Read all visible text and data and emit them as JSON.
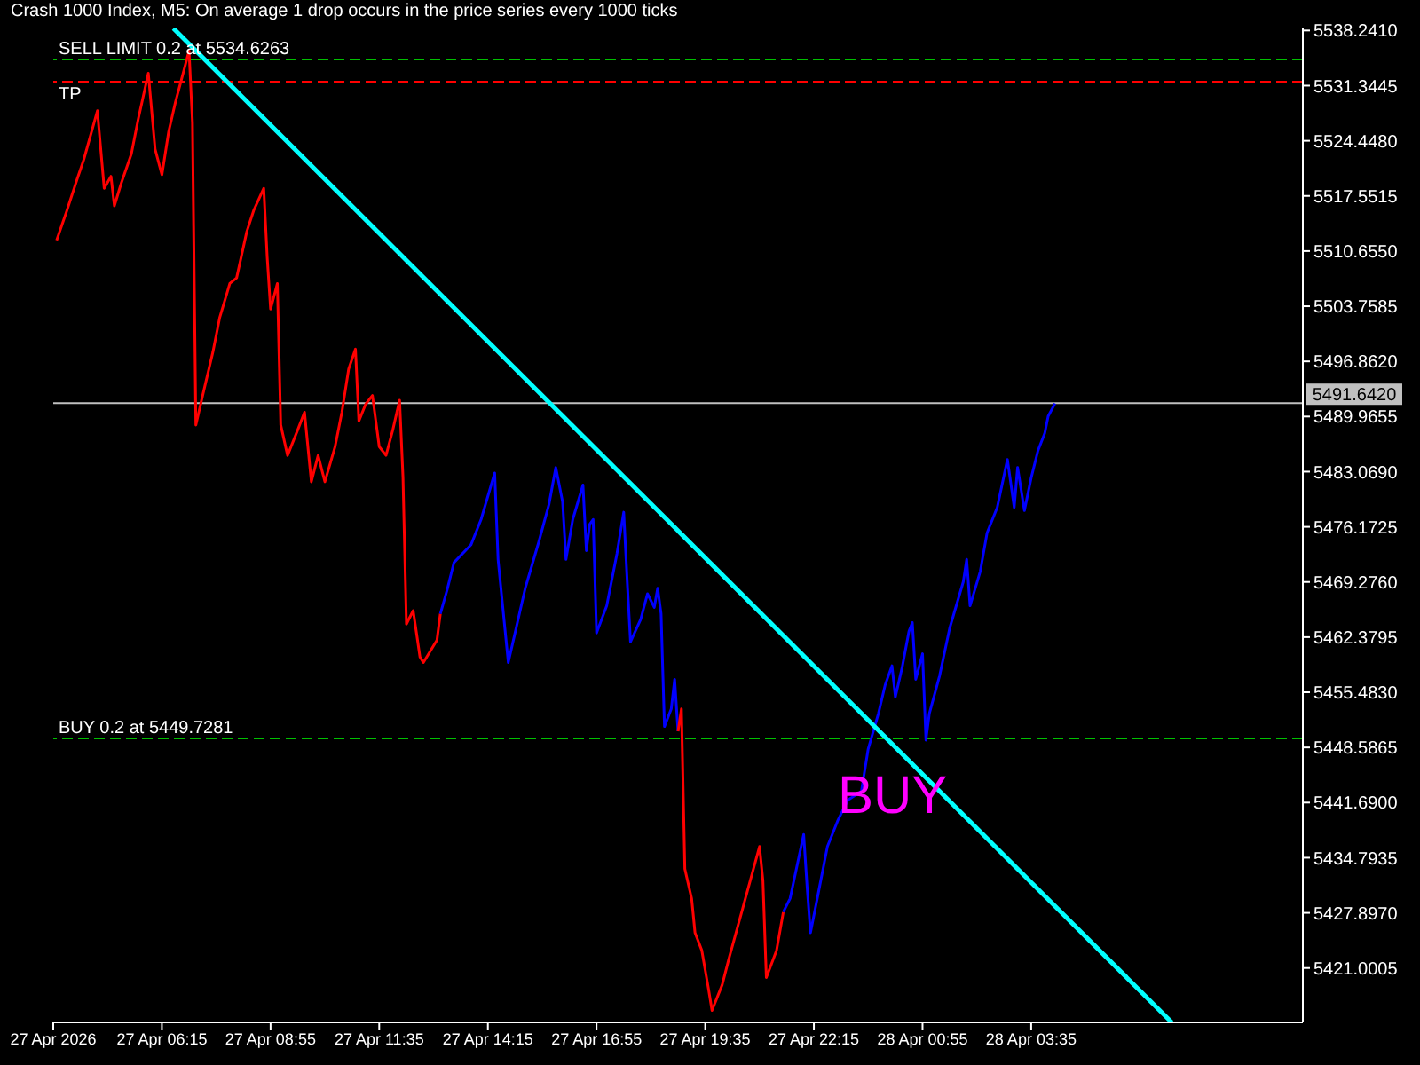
{
  "chart_data": {
    "type": "line",
    "title": "Crash 1000 Index, M5:  On average 1 drop occurs in the price series every 1000 ticks",
    "xlim": [
      "2026-04-27T03:35",
      "2026-04-28T10:15"
    ],
    "xticks": [
      {
        "value": "2026-04-27T03:35",
        "label": "27 Apr 2026"
      },
      {
        "value": "2026-04-27T06:15",
        "label": "27 Apr 06:15"
      },
      {
        "value": "2026-04-27T08:55",
        "label": "27 Apr 08:55"
      },
      {
        "value": "2026-04-27T11:35",
        "label": "27 Apr 11:35"
      },
      {
        "value": "2026-04-27T14:15",
        "label": "27 Apr 14:15"
      },
      {
        "value": "2026-04-27T16:55",
        "label": "27 Apr 16:55"
      },
      {
        "value": "2026-04-27T19:35",
        "label": "27 Apr 19:35"
      },
      {
        "value": "2026-04-27T22:15",
        "label": "27 Apr 22:15"
      },
      {
        "value": "2026-04-28T00:55",
        "label": "28 Apr 00:55"
      },
      {
        "value": "2026-04-28T03:35",
        "label": "28 Apr 03:35"
      }
    ],
    "ylim": [
      5414.2,
      5538.5
    ],
    "yticks": [
      {
        "value": 5421.0005,
        "label": "5421.0005"
      },
      {
        "value": 5427.897,
        "label": "5427.8970"
      },
      {
        "value": 5434.7935,
        "label": "5434.7935"
      },
      {
        "value": 5441.69,
        "label": "5441.6900"
      },
      {
        "value": 5448.5865,
        "label": "5448.5865"
      },
      {
        "value": 5455.483,
        "label": "5455.4830"
      },
      {
        "value": 5462.3795,
        "label": "5462.3795"
      },
      {
        "value": 5469.276,
        "label": "5469.2760"
      },
      {
        "value": 5476.1725,
        "label": "5476.1725"
      },
      {
        "value": 5483.069,
        "label": "5483.0690"
      },
      {
        "value": 5489.9655,
        "label": "5489.9655"
      },
      {
        "value": 5496.862,
        "label": "5496.8620"
      },
      {
        "value": 5503.7585,
        "label": "5503.7585"
      },
      {
        "value": 5510.655,
        "label": "5510.6550"
      },
      {
        "value": 5517.5515,
        "label": "5517.5515"
      },
      {
        "value": 5524.448,
        "label": "5524.4480"
      },
      {
        "value": 5531.3445,
        "label": "5531.3445"
      },
      {
        "value": 5538.241,
        "label": "5538.2410"
      }
    ],
    "series": [
      {
        "color": "#ff0000",
        "x": [
          "2026-04-27T03:40",
          "2026-04-27T03:55",
          "2026-04-27T04:10",
          "2026-04-27T04:20",
          "2026-04-27T04:40",
          "2026-04-27T04:50",
          "2026-04-27T05:00",
          "2026-04-27T05:05",
          "2026-04-27T05:15",
          "2026-04-27T05:30",
          "2026-04-27T05:40",
          "2026-04-27T05:55",
          "2026-04-27T06:05",
          "2026-04-27T06:15",
          "2026-04-27T06:25",
          "2026-04-27T06:35",
          "2026-04-27T06:45",
          "2026-04-27T06:55",
          "2026-04-27T07:00",
          "2026-04-27T07:05",
          "2026-04-27T07:15",
          "2026-04-27T07:30",
          "2026-04-27T07:40",
          "2026-04-27T07:55",
          "2026-04-27T08:05",
          "2026-04-27T08:20",
          "2026-04-27T08:30",
          "2026-04-27T08:45",
          "2026-04-27T08:50",
          "2026-04-27T08:55",
          "2026-04-27T09:05",
          "2026-04-27T09:10",
          "2026-04-27T09:20",
          "2026-04-27T09:35",
          "2026-04-27T09:45",
          "2026-04-27T09:55",
          "2026-04-27T10:05",
          "2026-04-27T10:15",
          "2026-04-27T10:30",
          "2026-04-27T10:40",
          "2026-04-27T10:50",
          "2026-04-27T11:00",
          "2026-04-27T11:05",
          "2026-04-27T11:15",
          "2026-04-27T11:25",
          "2026-04-27T11:35",
          "2026-04-27T11:45",
          "2026-04-27T11:55",
          "2026-04-27T12:05",
          "2026-04-27T12:10",
          "2026-04-27T12:15",
          "2026-04-27T12:25",
          "2026-04-27T12:35",
          "2026-04-27T12:40",
          "2026-04-27T13:00",
          "2026-04-27T13:05"
        ],
        "values": [
          5512.0,
          5515.7,
          5519.6,
          5522.1,
          5528.2,
          5518.5,
          5520.0,
          5516.3,
          5519.1,
          5522.8,
          5527.1,
          5532.9,
          5523.4,
          5520.2,
          5525.6,
          5529.3,
          5532.5,
          5535.7,
          5526.7,
          5488.9,
          5492.6,
          5498.0,
          5502.3,
          5506.6,
          5507.3,
          5513.1,
          5515.7,
          5518.5,
          5509.9,
          5503.4,
          5506.6,
          5488.9,
          5485.1,
          5488.3,
          5490.5,
          5481.8,
          5485.1,
          5481.8,
          5486.2,
          5490.5,
          5495.9,
          5498.4,
          5489.4,
          5491.5,
          5492.6,
          5486.2,
          5485.1,
          5488.3,
          5492.0,
          5482.3,
          5464.0,
          5465.7,
          5459.9,
          5459.2,
          5462.0,
          5465.3
        ]
      },
      {
        "color": "#0000ff",
        "x": [
          "2026-04-27T13:05",
          "2026-04-27T13:15",
          "2026-04-27T13:25",
          "2026-04-27T13:50",
          "2026-04-27T14:05",
          "2026-04-27T14:25",
          "2026-04-27T14:30",
          "2026-04-27T14:40",
          "2026-04-27T14:45",
          "2026-04-27T14:55",
          "2026-04-27T15:10",
          "2026-04-27T15:30",
          "2026-04-27T15:45",
          "2026-04-27T15:55",
          "2026-04-27T16:05",
          "2026-04-27T16:10",
          "2026-04-27T16:20",
          "2026-04-27T16:35",
          "2026-04-27T16:40",
          "2026-04-27T16:45",
          "2026-04-27T16:50",
          "2026-04-27T16:55",
          "2026-04-27T17:10",
          "2026-04-27T17:25",
          "2026-04-27T17:35",
          "2026-04-27T17:40",
          "2026-04-27T17:45",
          "2026-04-27T18:00",
          "2026-04-27T18:10",
          "2026-04-27T18:20",
          "2026-04-27T18:25",
          "2026-04-27T18:30",
          "2026-04-27T18:35",
          "2026-04-27T18:45",
          "2026-04-27T18:50",
          "2026-04-27T18:55"
        ],
        "values": [
          5465.3,
          5468.3,
          5471.7,
          5473.9,
          5477.1,
          5482.9,
          5472.1,
          5463.5,
          5459.2,
          5462.9,
          5468.5,
          5474.3,
          5479.0,
          5483.6,
          5479.3,
          5472.1,
          5477.1,
          5481.4,
          5473.2,
          5476.5,
          5477.1,
          5462.9,
          5466.3,
          5472.8,
          5478.0,
          5469.6,
          5461.8,
          5464.6,
          5467.8,
          5466.1,
          5468.5,
          5465.3,
          5451.2,
          5453.4,
          5457.1,
          5450.6
        ]
      },
      {
        "color": "#ff0000",
        "x": [
          "2026-04-27T18:55",
          "2026-04-27T19:00",
          "2026-04-27T19:05",
          "2026-04-27T19:15",
          "2026-04-27T19:20",
          "2026-04-27T19:30",
          "2026-04-27T19:40",
          "2026-04-27T19:45",
          "2026-04-27T20:00",
          "2026-04-27T20:10",
          "2026-04-27T20:30",
          "2026-04-27T20:55",
          "2026-04-27T21:00",
          "2026-04-27T21:05",
          "2026-04-27T21:20",
          "2026-04-27T21:30"
        ],
        "values": [
          5450.6,
          5453.4,
          5433.4,
          5429.7,
          5425.4,
          5423.2,
          5418.3,
          5415.7,
          5418.9,
          5422.2,
          5428.4,
          5436.2,
          5431.9,
          5419.8,
          5423.2,
          5428.0
        ]
      },
      {
        "color": "#0000ff",
        "x": [
          "2026-04-27T21:30",
          "2026-04-27T21:40",
          "2026-04-27T22:00",
          "2026-04-27T22:05",
          "2026-04-27T22:10",
          "2026-04-27T22:20",
          "2026-04-27T22:35",
          "2026-04-27T22:50",
          "2026-04-27T23:05",
          "2026-04-27T23:25",
          "2026-04-27T23:35",
          "2026-04-27T23:50",
          "2026-04-28T00:00",
          "2026-04-28T00:10",
          "2026-04-28T00:15",
          "2026-04-28T00:25",
          "2026-04-28T00:35",
          "2026-04-28T00:40",
          "2026-04-28T00:45",
          "2026-04-28T00:55",
          "2026-04-28T01:00",
          "2026-04-28T01:05",
          "2026-04-28T01:20",
          "2026-04-28T01:35",
          "2026-04-28T01:55",
          "2026-04-28T02:00",
          "2026-04-28T02:05",
          "2026-04-28T02:20",
          "2026-04-28T02:30",
          "2026-04-28T02:45",
          "2026-04-28T03:00",
          "2026-04-28T03:10",
          "2026-04-28T03:15",
          "2026-04-28T03:25",
          "2026-04-28T03:35",
          "2026-04-28T03:45",
          "2026-04-28T03:55",
          "2026-04-28T04:00",
          "2026-04-28T04:10"
        ],
        "values": [
          5428.0,
          5429.7,
          5437.7,
          5431.2,
          5425.4,
          5429.7,
          5436.2,
          5439.4,
          5442.0,
          5443.1,
          5448.4,
          5452.8,
          5456.4,
          5458.8,
          5454.9,
          5458.6,
          5463.1,
          5464.2,
          5457.1,
          5460.3,
          5449.5,
          5452.8,
          5457.5,
          5463.5,
          5469.3,
          5472.1,
          5466.3,
          5470.6,
          5475.4,
          5478.6,
          5484.6,
          5478.6,
          5483.6,
          5478.2,
          5482.3,
          5485.7,
          5487.9,
          5490.0,
          5491.6
        ]
      },
      {
        "type": "line",
        "color": "#00ffff",
        "x": [
          "2026-04-27T06:32",
          "2026-04-28T07:02"
        ],
        "values": [
          5538.5,
          5414.2
        ]
      }
    ],
    "ref_lines": [
      {
        "axis": "y",
        "value": 5534.6263,
        "label": "SELL LIMIT 0.2 at 5534.6263",
        "color": "#00c000",
        "line_style": "dashed"
      },
      {
        "axis": "y",
        "value": 5531.84,
        "label": "TP",
        "color": "#ff0000",
        "line_style": "dashed"
      },
      {
        "axis": "y",
        "value": 5491.642,
        "label": "5491.6420",
        "color": "#c0c0c0",
        "line_style": "solid"
      },
      {
        "axis": "y",
        "value": 5449.7281,
        "label": "BUY 0.2 at 5449.7281",
        "color": "#00c000",
        "line_style": "dashed"
      }
    ],
    "annotations": [
      "BUY"
    ],
    "grid": false,
    "marker": "none",
    "line_style": "solid"
  }
}
